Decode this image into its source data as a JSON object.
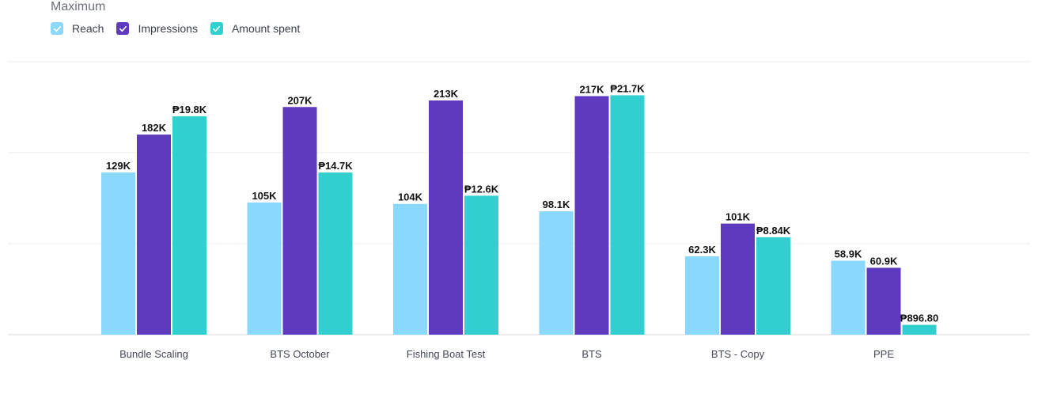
{
  "chart_data": {
    "type": "bar",
    "title": "Maximum",
    "legend_position": "top-left",
    "grid": true,
    "xlabel": "",
    "ylabel": "",
    "categories": [
      "Bundle Scaling",
      "BTS October",
      "Fishing Boat Test",
      "BTS",
      "BTS - Copy",
      "PPE"
    ],
    "series": [
      {
        "name": "Reach",
        "color": "#8ad8fc",
        "values": [
          0.594,
          0.484,
          0.479,
          0.452,
          0.287,
          0.271
        ],
        "labels": [
          "129K",
          "105K",
          "104K",
          "98.1K",
          "62.3K",
          "58.9K"
        ]
      },
      {
        "name": "Impressions",
        "color": "#5e3abf",
        "values": [
          0.733,
          0.834,
          0.858,
          0.874,
          0.407,
          0.245
        ],
        "labels": [
          "182K",
          "207K",
          "213K",
          "217K",
          "101K",
          "60.9K"
        ]
      },
      {
        "name": "Amount spent",
        "color": "#31cfcf",
        "values": [
          0.8,
          0.594,
          0.509,
          0.877,
          0.357,
          0.036
        ],
        "labels": [
          "₱19.8K",
          "₱14.7K",
          "₱12.6K",
          "₱21.7K",
          "₱8.84K",
          "₱896.80"
        ]
      }
    ],
    "value_scale": "each series normalized to a shared 0-1 plot range",
    "ylim": [
      0,
      1
    ]
  }
}
